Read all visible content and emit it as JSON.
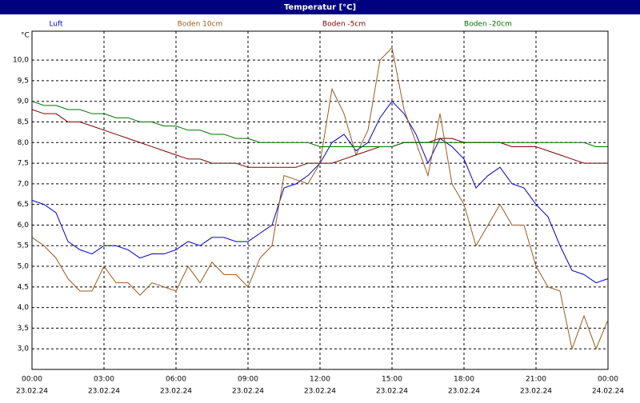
{
  "chart_data": {
    "type": "line",
    "title": "Temperatur [°C]",
    "y_unit": "°C",
    "x": [
      0,
      0.5,
      1,
      1.5,
      2,
      2.5,
      3,
      3.5,
      4,
      4.5,
      5,
      5.5,
      6,
      6.5,
      7,
      7.5,
      8,
      8.5,
      9,
      9.5,
      10,
      10.5,
      11,
      11.5,
      12,
      12.5,
      13,
      13.5,
      14,
      14.5,
      15,
      15.5,
      16,
      16.5,
      17,
      17.5,
      18,
      18.5,
      19,
      19.5,
      20,
      20.5,
      21,
      21.5,
      22,
      22.5,
      23,
      23.5,
      24
    ],
    "series": [
      {
        "name": "Luft",
        "color": "#0000cc",
        "values": [
          6.6,
          6.5,
          6.3,
          5.6,
          5.4,
          5.3,
          5.5,
          5.5,
          5.4,
          5.2,
          5.3,
          5.3,
          5.4,
          5.6,
          5.5,
          5.7,
          5.7,
          5.6,
          5.6,
          5.8,
          6.0,
          6.9,
          7.0,
          7.2,
          7.5,
          8.0,
          8.2,
          7.8,
          8.0,
          8.6,
          9.0,
          8.7,
          8.2,
          7.5,
          8.1,
          7.9,
          7.6,
          6.9,
          7.2,
          7.4,
          7.0,
          6.9,
          6.5,
          6.2,
          5.5,
          4.9,
          4.8,
          4.6,
          4.7
        ]
      },
      {
        "name": "Boden 10cm",
        "color": "#9c5a1e",
        "values": [
          5.7,
          5.5,
          5.2,
          4.7,
          4.4,
          4.4,
          5.0,
          4.6,
          4.6,
          4.3,
          4.6,
          4.5,
          4.4,
          5.0,
          4.6,
          5.1,
          4.8,
          4.8,
          4.5,
          5.2,
          5.5,
          7.2,
          7.1,
          7.0,
          7.5,
          9.3,
          8.7,
          7.7,
          8.3,
          10.0,
          10.3,
          8.8,
          8.0,
          7.2,
          8.7,
          7.0,
          6.5,
          5.5,
          6.0,
          6.5,
          6.0,
          6.0,
          5.0,
          4.5,
          4.4,
          3.0,
          3.8,
          3.0,
          3.7
        ]
      },
      {
        "name": "Boden -5cm",
        "color": "#800000",
        "values": [
          8.8,
          8.7,
          8.7,
          8.5,
          8.5,
          8.4,
          8.3,
          8.2,
          8.1,
          8.0,
          7.9,
          7.8,
          7.7,
          7.6,
          7.6,
          7.5,
          7.5,
          7.5,
          7.4,
          7.4,
          7.4,
          7.4,
          7.4,
          7.5,
          7.5,
          7.5,
          7.6,
          7.7,
          7.8,
          7.9,
          7.9,
          8.0,
          8.0,
          8.0,
          8.1,
          8.1,
          8.0,
          8.0,
          8.0,
          8.0,
          7.9,
          7.9,
          7.9,
          7.8,
          7.7,
          7.6,
          7.5,
          7.5,
          7.5
        ]
      },
      {
        "name": "Boden -20cm",
        "color": "#007000",
        "values": [
          9.0,
          8.9,
          8.9,
          8.8,
          8.8,
          8.7,
          8.7,
          8.6,
          8.6,
          8.5,
          8.5,
          8.4,
          8.4,
          8.3,
          8.3,
          8.2,
          8.2,
          8.1,
          8.1,
          8.0,
          8.0,
          8.0,
          8.0,
          8.0,
          7.9,
          7.9,
          7.9,
          7.9,
          7.9,
          7.9,
          7.9,
          8.0,
          8.0,
          8.0,
          8.0,
          8.0,
          8.0,
          8.0,
          8.0,
          8.0,
          8.0,
          8.0,
          8.0,
          8.0,
          8.0,
          8.0,
          8.0,
          7.9,
          7.9
        ]
      }
    ],
    "xlim": [
      0,
      24
    ],
    "xticks": [
      {
        "value": 0,
        "label": "00:00",
        "date": "23.02.24"
      },
      {
        "value": 3,
        "label": "03:00",
        "date": "23.02.24"
      },
      {
        "value": 6,
        "label": "06:00",
        "date": "23.02.24"
      },
      {
        "value": 9,
        "label": "09:00",
        "date": "23.02.24"
      },
      {
        "value": 12,
        "label": "12:00",
        "date": "23.02.24"
      },
      {
        "value": 15,
        "label": "15:00",
        "date": "23.02.24"
      },
      {
        "value": 18,
        "label": "18:00",
        "date": "23.02.24"
      },
      {
        "value": 21,
        "label": "21:00",
        "date": "23.02.24"
      },
      {
        "value": 24,
        "label": "00:00",
        "date": "24.02.24"
      }
    ],
    "ylim": [
      2.5,
      10.7
    ],
    "yticks": [
      {
        "value": 3,
        "label": "3,0"
      },
      {
        "value": 3.5,
        "label": "3,5"
      },
      {
        "value": 4,
        "label": "4,0"
      },
      {
        "value": 4.5,
        "label": "4,5"
      },
      {
        "value": 5,
        "label": "5,0"
      },
      {
        "value": 5.5,
        "label": "5,5"
      },
      {
        "value": 6,
        "label": "6,0"
      },
      {
        "value": 6.5,
        "label": "6,5"
      },
      {
        "value": 7,
        "label": "7,0"
      },
      {
        "value": 7.5,
        "label": "7,5"
      },
      {
        "value": 8,
        "label": "8,0"
      },
      {
        "value": 8.5,
        "label": "8,5"
      },
      {
        "value": 9,
        "label": "9,0"
      },
      {
        "value": 9.5,
        "label": "9,5"
      },
      {
        "value": 10,
        "label": "10,0"
      }
    ],
    "grid": true
  }
}
